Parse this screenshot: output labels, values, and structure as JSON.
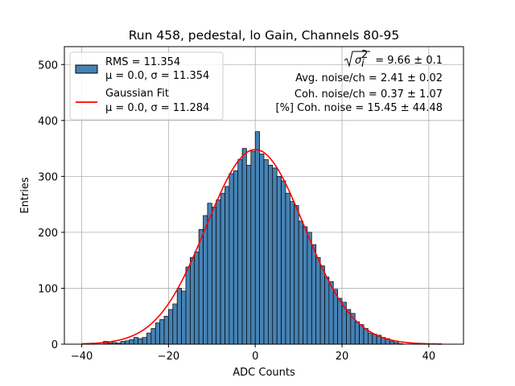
{
  "chart_data": {
    "type": "bar",
    "title": "Run 458, pedestal, lo Gain, Channels 80-95",
    "xlabel": "ADC Counts",
    "ylabel": "Entries",
    "xlim": [
      -44,
      48
    ],
    "ylim": [
      0,
      532
    ],
    "xticks": [
      -40,
      -20,
      0,
      20,
      40
    ],
    "yticks": [
      0,
      100,
      200,
      300,
      400,
      500
    ],
    "grid": true,
    "legend_position": "top-left",
    "bin_start": -40,
    "bin_width": 1,
    "histogram_color": "#4682b4",
    "fit_color": "#ff0000",
    "histogram": {
      "name": "RMS = 11.354",
      "stats": "μ = 0.0, σ = 11.354",
      "counts": [
        0,
        0,
        0,
        0,
        0,
        5,
        2,
        3,
        2,
        5,
        6,
        8,
        12,
        10,
        12,
        20,
        28,
        38,
        44,
        50,
        62,
        72,
        100,
        95,
        138,
        155,
        165,
        205,
        230,
        252,
        245,
        258,
        270,
        282,
        305,
        310,
        330,
        350,
        320,
        345,
        380,
        340,
        330,
        320,
        315,
        300,
        292,
        270,
        255,
        248,
        220,
        210,
        200,
        178,
        155,
        140,
        120,
        112,
        98,
        82,
        75,
        62,
        55,
        40,
        35,
        28,
        20,
        18,
        16,
        12,
        10,
        5,
        3,
        1,
        0,
        0,
        0,
        0,
        0,
        0,
        0,
        0,
        0
      ],
      "mean": 0.0,
      "sigma": 11.354
    },
    "fit": {
      "name": "Gaussian Fit",
      "stats": "μ = 0.0, σ = 11.284",
      "mu": 0.0,
      "sigma": 11.284,
      "peak": 348,
      "x_range": [
        -40,
        43
      ]
    },
    "annotations": {
      "sigma_sym": "σ",
      "sigma_sub": "i",
      "sigma_sup": "2",
      "sigma_value": " = 9.66 ± 0.1",
      "avg_noise": "Avg. noise/ch = 2.41 ± 0.02",
      "coh_noise": "Coh. noise/ch = 0.37 ± 1.07",
      "pct_coh_noise": "[%] Coh. noise = 15.45 ± 44.48"
    }
  }
}
